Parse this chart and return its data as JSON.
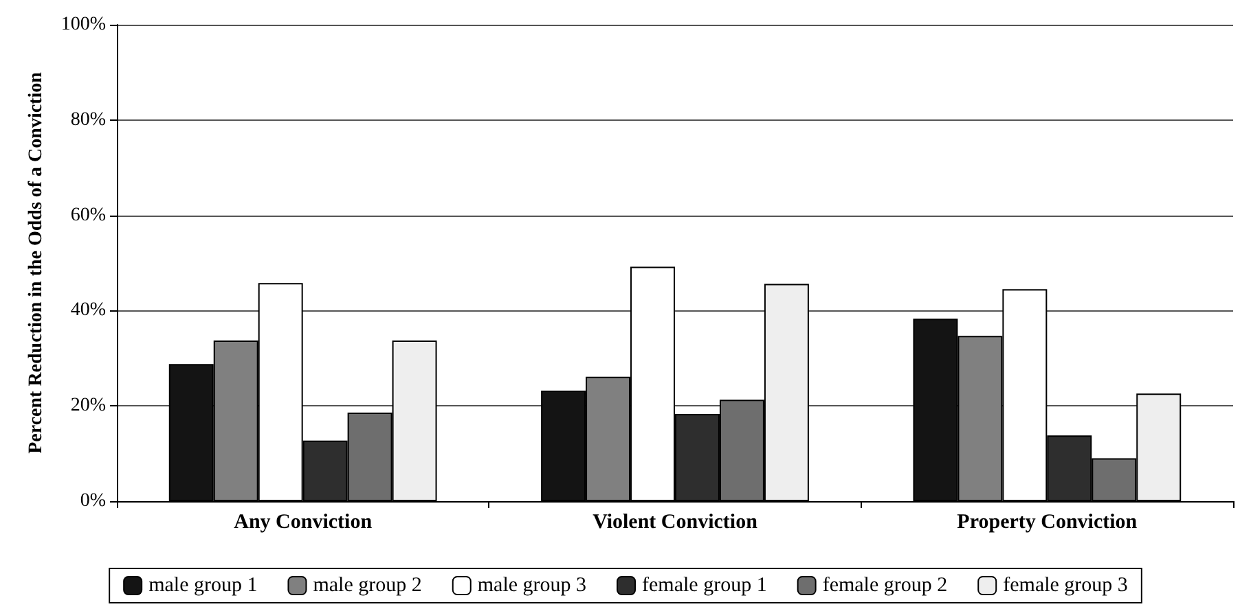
{
  "chart_data": {
    "type": "bar",
    "ylabel": "Percent Reduction in the Odds of a Conviction",
    "categories": [
      "Any Conviction",
      "Violent Conviction",
      "Property Conviction"
    ],
    "series": [
      {
        "name": "male group 1",
        "color": "#141414",
        "values": [
          28.8,
          23.2,
          38.3
        ]
      },
      {
        "name": "male group 2",
        "color": "#808080",
        "values": [
          33.7,
          26.1,
          34.7
        ]
      },
      {
        "name": "male group 3",
        "color": "#ffffff",
        "values": [
          45.8,
          49.2,
          44.5
        ]
      },
      {
        "name": "female group 1",
        "color": "#2e2e2e",
        "values": [
          12.7,
          18.3,
          13.8
        ]
      },
      {
        "name": "female group 2",
        "color": "#6e6e6e",
        "values": [
          18.6,
          21.3,
          9.0
        ]
      },
      {
        "name": "female group 3",
        "color": "#eeeeee",
        "values": [
          33.7,
          45.6,
          22.6
        ]
      }
    ],
    "ylim": [
      0,
      100
    ],
    "yticks": [
      {
        "value": 0,
        "label": "0%"
      },
      {
        "value": 20,
        "label": "20%"
      },
      {
        "value": 40,
        "label": "40%"
      },
      {
        "value": 60,
        "label": "60%"
      },
      {
        "value": 80,
        "label": "80%"
      },
      {
        "value": 100,
        "label": "100%"
      }
    ],
    "grid": "y",
    "legend": "bottom"
  }
}
